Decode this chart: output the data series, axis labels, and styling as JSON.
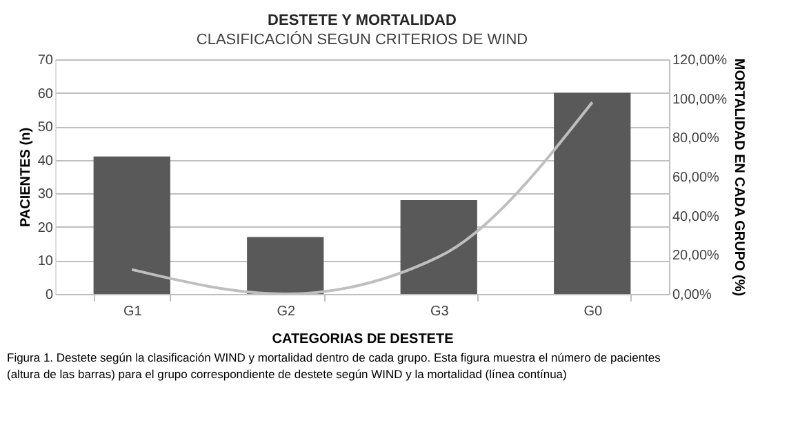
{
  "chart_data": {
    "type": "bar",
    "title": "DESTETE Y MORTALIDAD",
    "subtitle": "CLASIFICACIÓN SEGUN CRITERIOS DE WIND",
    "xlabel": "CATEGORIAS  DE DESTETE",
    "ylabel": "PACIENTES  (n)",
    "y2label": "MORTALIDAD  EN CADA GRUPO  (%)",
    "categories": [
      "G1",
      "G2",
      "G3",
      "G0"
    ],
    "series": [
      {
        "color": "#595959",
        "values": [
          41,
          17,
          28,
          60
        ]
      },
      {
        "type": "line",
        "axis": "y2",
        "color": "#bfbfbf",
        "values": [
          12.5,
          0,
          19,
          98
        ]
      }
    ],
    "ylim": [
      0,
      70
    ],
    "yticks": [
      0,
      10,
      20,
      30,
      40,
      50,
      60,
      70
    ],
    "y2lim": [
      0,
      120
    ],
    "y2ticks": [
      {
        "value": 0,
        "label": "0,00%"
      },
      {
        "value": 20,
        "label": "20,00%"
      },
      {
        "value": 40,
        "label": "40,00%"
      },
      {
        "value": 60,
        "label": "60,00%"
      },
      {
        "value": 80,
        "label": "80,00%"
      },
      {
        "value": 100,
        "label": "100,00%"
      },
      {
        "value": 120,
        "label": "120,00%"
      }
    ],
    "grid": "y",
    "marker": "none",
    "line_style": "solid",
    "annotations": [
      "Figura 1.  Destete según la clasificación WIND y mortalidad dentro de cada grupo. Esta figura muestra el número de pacientes (altura de las barras) para el grupo correspondiente de destete según WIND y la mortalidad (línea contínua)"
    ]
  }
}
